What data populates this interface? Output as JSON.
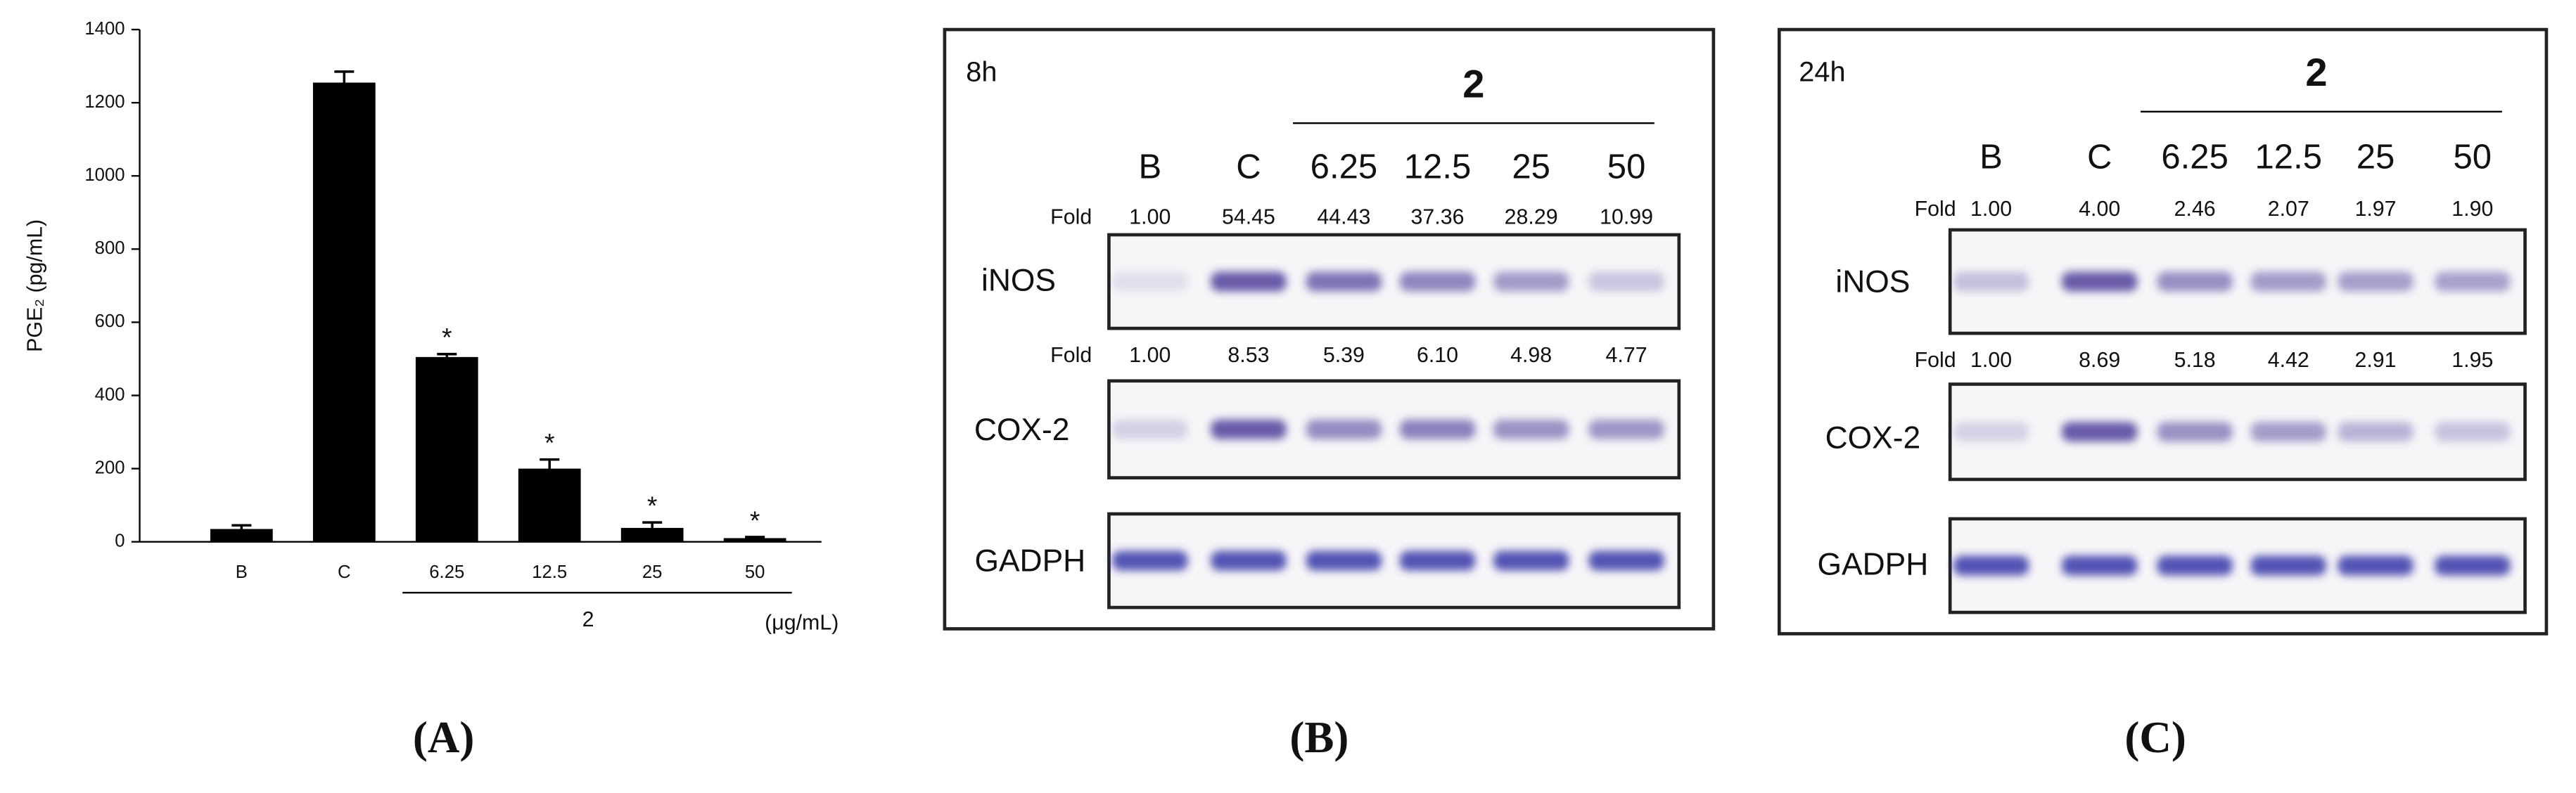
{
  "chart_data": {
    "type": "bar",
    "ylabel": "PGE₂ (pg/mL)",
    "categories": [
      "B",
      "C",
      "6.25",
      "12.5",
      "25",
      "50"
    ],
    "values": [
      35,
      1255,
      505,
      200,
      38,
      10
    ],
    "errors": [
      10,
      30,
      8,
      25,
      15,
      3
    ],
    "significance": [
      null,
      null,
      "*",
      "*",
      "*",
      "*"
    ],
    "group_label": "2",
    "unit_label": "(μg/mL)",
    "color": "#000000",
    "ylim": [
      0,
      1400
    ],
    "yticks": [
      0,
      200,
      400,
      600,
      800,
      1000,
      1200,
      1400
    ]
  },
  "panel_labels": [
    "(A)",
    "(B)",
    "(C)"
  ],
  "panels": [
    {
      "time": "8h",
      "group": "2",
      "lanes": [
        "B",
        "C",
        "6.25",
        "12.5",
        "25",
        "50"
      ],
      "rows": [
        {
          "name": "iNOS",
          "fold_label": "Fold",
          "fold": [
            "1.00",
            "54.45",
            "44.43",
            "37.36",
            "28.29",
            "10.99"
          ]
        },
        {
          "name": "COX-2",
          "fold_label": "Fold",
          "fold": [
            "1.00",
            "8.53",
            "5.39",
            "6.10",
            "4.98",
            "4.77"
          ]
        },
        {
          "name": "GADPH"
        }
      ]
    },
    {
      "time": "24h",
      "group": "2",
      "lanes": [
        "B",
        "C",
        "6.25",
        "12.5",
        "25",
        "50"
      ],
      "rows": [
        {
          "name": "iNOS",
          "fold_label": "Fold",
          "fold": [
            "1.00",
            "4.00",
            "2.46",
            "2.07",
            "1.97",
            "1.90"
          ]
        },
        {
          "name": "COX-2",
          "fold_label": "Fold",
          "fold": [
            "1.00",
            "8.69",
            "5.18",
            "4.42",
            "2.91",
            "1.95"
          ]
        },
        {
          "name": "GADPH"
        }
      ]
    }
  ]
}
